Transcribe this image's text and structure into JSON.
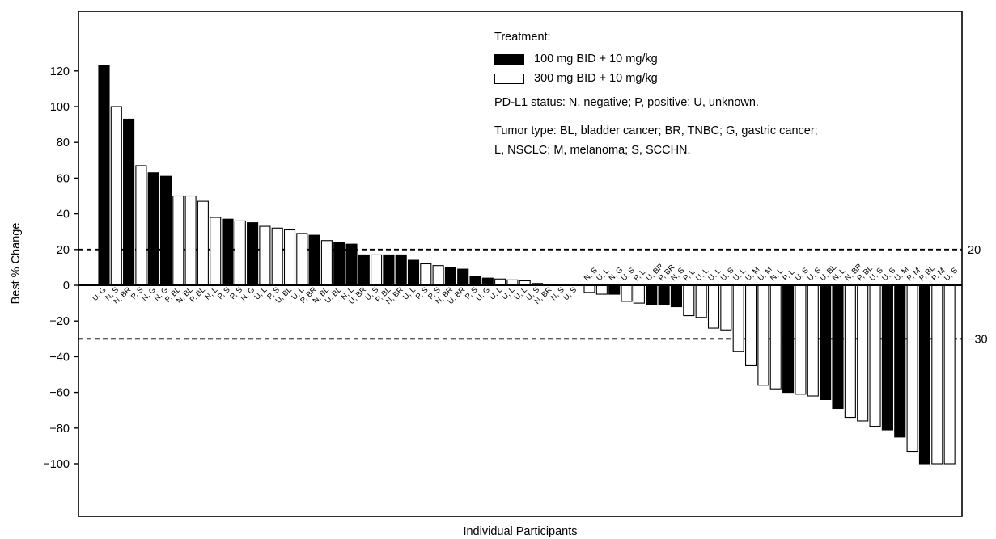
{
  "chart_data": {
    "type": "bar",
    "ylabel": "Best % Change",
    "xlabel": "Individual Participants",
    "ylim": [
      -125,
      152
    ],
    "yticks": [
      -100,
      -80,
      -60,
      -40,
      -20,
      0,
      20,
      40,
      60,
      80,
      100,
      120
    ],
    "yticks_text": [
      "−100",
      "−80",
      "−60",
      "−40",
      "−20",
      "0",
      "20",
      "40",
      "60",
      "80",
      "100",
      "120"
    ],
    "reference_lines": [
      {
        "value": 20,
        "label": "20"
      },
      {
        "value": -30,
        "label": "−30"
      }
    ],
    "legend": {
      "title": "Treatment:",
      "entries": [
        {
          "label": "100 mg BID + 10 mg/kg",
          "color": "#000000"
        },
        {
          "label": "300 mg BID + 10 mg/kg",
          "color": "#ffffff"
        }
      ],
      "pdl1_note": "PD-L1 status: N, negative; P, positive; U, unknown.",
      "tumor_note_line1": "Tumor type: BL, bladder cancer; BR, TNBC; G, gastric cancer;",
      "tumor_note_line2": "L, NSCLC; M, melanoma; S, SCCHN."
    },
    "series": [
      {
        "name": "100 mg BID + 10 mg/kg",
        "color": "#000000"
      },
      {
        "name": "300 mg BID + 10 mg/kg",
        "color": "#ffffff"
      }
    ],
    "categories": [
      "U, G",
      "N, S",
      "N, BR",
      "P, S",
      "N, G",
      "N, G",
      "P, BL",
      "N, BL",
      "P, BL",
      "N, L",
      "P, S",
      "P, S",
      "N, G",
      "U, L",
      "P, S",
      "U, BL",
      "U, L",
      "P, BR",
      "N, BL",
      "U, BL",
      "N, L",
      "U, BR",
      "U, S",
      "P, BL",
      "N, BR",
      "U, L",
      "P, S",
      "P, S",
      "N, BR",
      "U, BR",
      "P, S",
      "U, G",
      "U, L",
      "U, L",
      "U, L",
      "U, S",
      "N, BR",
      "N, S",
      "U, S",
      "N, S",
      "U, L",
      "N, G",
      "U, S",
      "P, L",
      "U, BR",
      "P, BR",
      "N, S",
      "P, L",
      "U, L",
      "U, L",
      "U, S",
      "U, L",
      "U, M",
      "U, M",
      "N, L",
      "P, L",
      "U, S",
      "U, S",
      "U, BL",
      "N, L",
      "N, BR",
      "P, BL",
      "U, S",
      "U, S",
      "U, M",
      "P, M",
      "P, BL",
      "P, M",
      "U, S"
    ],
    "values": [
      123,
      100,
      93,
      67,
      63,
      61,
      50,
      50,
      47,
      38,
      37,
      36,
      35,
      33,
      32,
      31,
      29,
      28,
      25,
      24,
      23,
      17,
      17,
      17,
      17,
      14,
      12,
      11,
      10,
      9,
      5,
      4,
      3.5,
      3,
      2.5,
      1,
      0,
      0,
      0,
      -4,
      -5,
      -5,
      -9,
      -10,
      -11,
      -11,
      -12,
      -17,
      -18,
      -24,
      -25,
      -37,
      -45,
      -56,
      -58,
      -60,
      -61,
      -62,
      -64,
      -69,
      -74,
      -76,
      -79,
      -81,
      -85,
      -93,
      -100,
      -100,
      -100
    ],
    "treatment": [
      "100",
      "300",
      "100",
      "300",
      "100",
      "100",
      "300",
      "300",
      "300",
      "300",
      "100",
      "300",
      "100",
      "300",
      "300",
      "300",
      "300",
      "100",
      "300",
      "100",
      "100",
      "100",
      "300",
      "100",
      "100",
      "100",
      "300",
      "300",
      "100",
      "100",
      "100",
      "100",
      "300",
      "300",
      "300",
      "300",
      "300",
      "300",
      "300",
      "300",
      "300",
      "100",
      "300",
      "300",
      "100",
      "100",
      "100",
      "300",
      "300",
      "300",
      "300",
      "300",
      "300",
      "300",
      "300",
      "100",
      "300",
      "300",
      "100",
      "100",
      "300",
      "300",
      "300",
      "100",
      "100",
      "300",
      "100",
      "300",
      "300"
    ]
  }
}
